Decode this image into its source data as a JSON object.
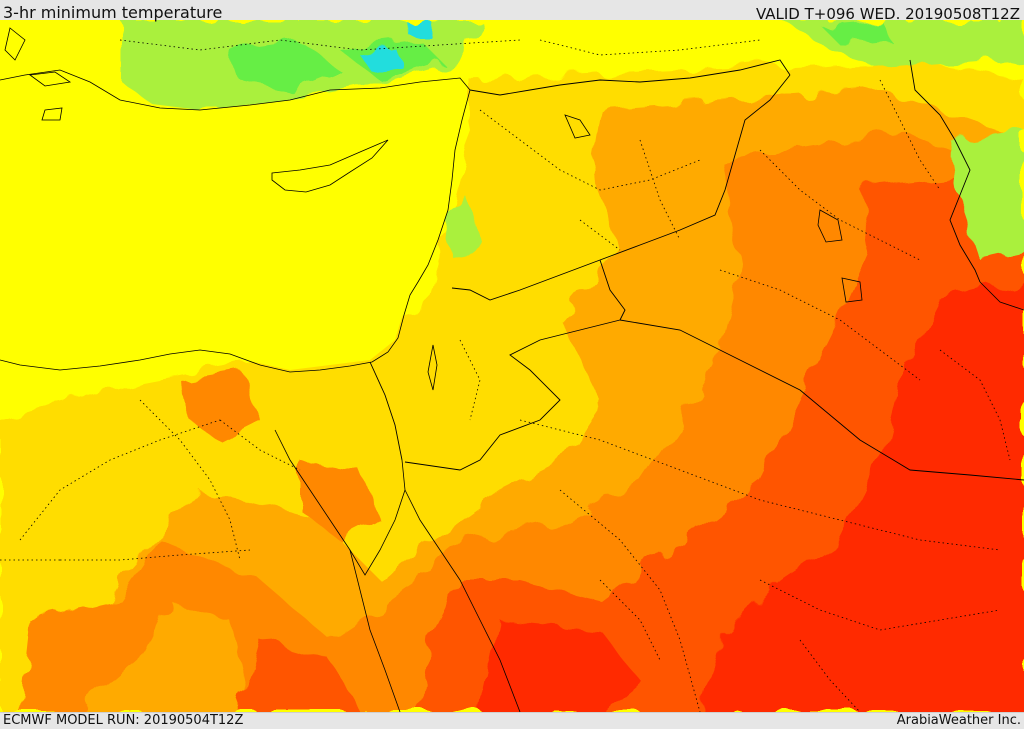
{
  "header": {
    "title": "3-hr minimum temperature",
    "valid": "VALID T+096 WED. 20190508T12Z"
  },
  "map": {
    "field": "3-hr minimum temperature",
    "palette": {
      "green": "#66ee44",
      "light_green": "#aaf03c",
      "cyan": "#22dddd",
      "yellow": "#ffff00",
      "gold": "#ffdd00",
      "orange_light": "#ffaa00",
      "orange": "#ff8800",
      "red_orange": "#ff5500",
      "red": "#ff2a00"
    },
    "boundaries": {
      "coastline_color": "#000000",
      "border_style": "solid",
      "admin_border_style": "dotted"
    }
  },
  "footer": {
    "model_run": "ECMWF MODEL RUN: 20190504T12Z",
    "credit": "ArabiaWeather Inc."
  }
}
